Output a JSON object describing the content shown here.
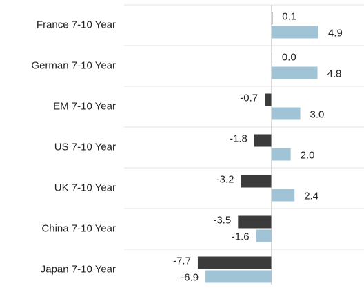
{
  "chart_data": {
    "type": "bar",
    "orientation": "horizontal",
    "categories": [
      "France 7-10 Year",
      "German 7-10 Year",
      "EM 7-10 Year",
      "US 7-10 Year",
      "UK 7-10 Year",
      "China 7-10 Year",
      "Japan 7-10 Year"
    ],
    "series": [
      {
        "color": "#3b3b3b",
        "values": [
          0.1,
          0.0,
          -0.7,
          -1.8,
          -3.2,
          -3.5,
          -7.7
        ],
        "value_labels": [
          "0.1",
          "0.0",
          "-0.7",
          "-1.8",
          "-3.2",
          "-3.5",
          "-7.7"
        ]
      },
      {
        "color": "#a0c4d6",
        "values": [
          4.9,
          4.8,
          3.0,
          2.0,
          2.4,
          -1.6,
          -6.9
        ],
        "value_labels": [
          "4.9",
          "4.8",
          "3.0",
          "2.0",
          "2.4",
          "-1.6",
          "-6.9"
        ]
      }
    ],
    "xlim": [
      -10,
      8
    ]
  }
}
